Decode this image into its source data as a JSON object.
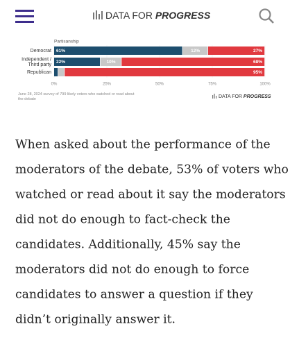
{
  "header": {
    "logo_light": "DATA FOR",
    "logo_bold": "PROGRESS"
  },
  "chart_data": {
    "type": "stacked-bar-horizontal",
    "subtitle": "Partisanship",
    "categories": [
      "Democrat",
      "Independent / Third party",
      "Republican"
    ],
    "series": [
      {
        "color": "#1d4e6e",
        "values": [
          61,
          22,
          2
        ],
        "value_labels": [
          "61%",
          "22%",
          null
        ]
      },
      {
        "color": "#c8c8c8",
        "values": [
          12,
          10,
          3
        ],
        "value_labels": [
          "12%",
          "10%",
          null
        ]
      },
      {
        "color": "#e1393f",
        "values": [
          27,
          68,
          95
        ],
        "value_labels": [
          "27%",
          "68%",
          "95%"
        ]
      }
    ],
    "xlim": [
      0,
      100
    ],
    "xticks": [
      {
        "value": 0,
        "label": "0%"
      },
      {
        "value": 25,
        "label": "25%"
      },
      {
        "value": 50,
        "label": "50%"
      },
      {
        "value": 75,
        "label": "75%"
      },
      {
        "value": 100,
        "label": "100%"
      }
    ],
    "note": "June 28, 2024 survey of 799 likely voters who watched or read about the debate",
    "logo_light": "DATA FOR",
    "logo_bold": "PROGRESS"
  },
  "article": {
    "lines": [
      "When asked about the performance of the",
      "moderators of the debate, 53% of voters who",
      "watched or read about it say the moderators",
      "did not do enough to fact-check the",
      "candidates. Additionally, 45% say the",
      "moderators did not do enough to force",
      "candidates to answer a question if they",
      "didn’t originally answer it."
    ]
  }
}
